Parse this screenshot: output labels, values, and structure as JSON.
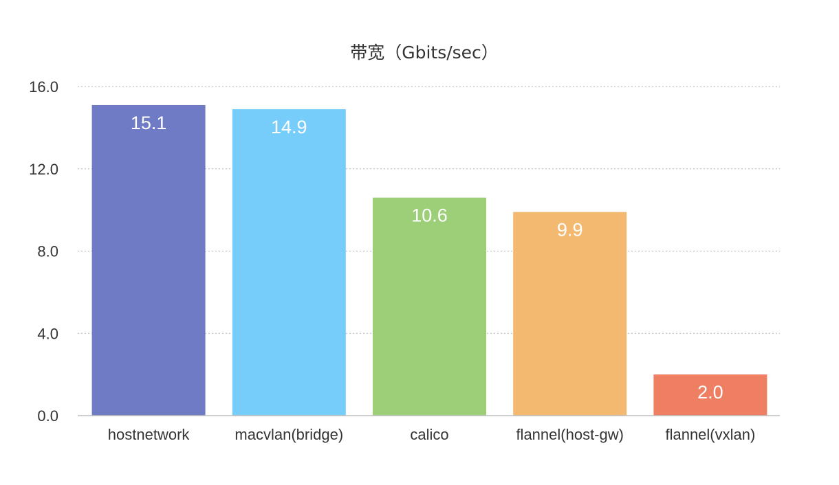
{
  "chart_data": {
    "type": "bar",
    "title": "带宽（Gbits/sec）",
    "xlabel": "",
    "ylabel": "",
    "categories": [
      "hostnetwork",
      "macvlan(bridge)",
      "calico",
      "flannel(host-gw)",
      "flannel(vxlan)"
    ],
    "values": [
      15.1,
      14.9,
      10.6,
      9.9,
      2.0
    ],
    "value_labels": [
      "15.1",
      "14.9",
      "10.6",
      "9.9",
      "2.0"
    ],
    "colors": [
      "#6f7bc5",
      "#76cdf9",
      "#9dcf79",
      "#f4b971",
      "#ee7f62"
    ],
    "ylim": [
      0,
      16
    ],
    "y_ticks": [
      0,
      4,
      8,
      12,
      16
    ],
    "y_tick_labels": [
      "0.0",
      "4.0",
      "8.0",
      "12.0",
      "16.0"
    ],
    "grid": true,
    "legend": "none"
  }
}
